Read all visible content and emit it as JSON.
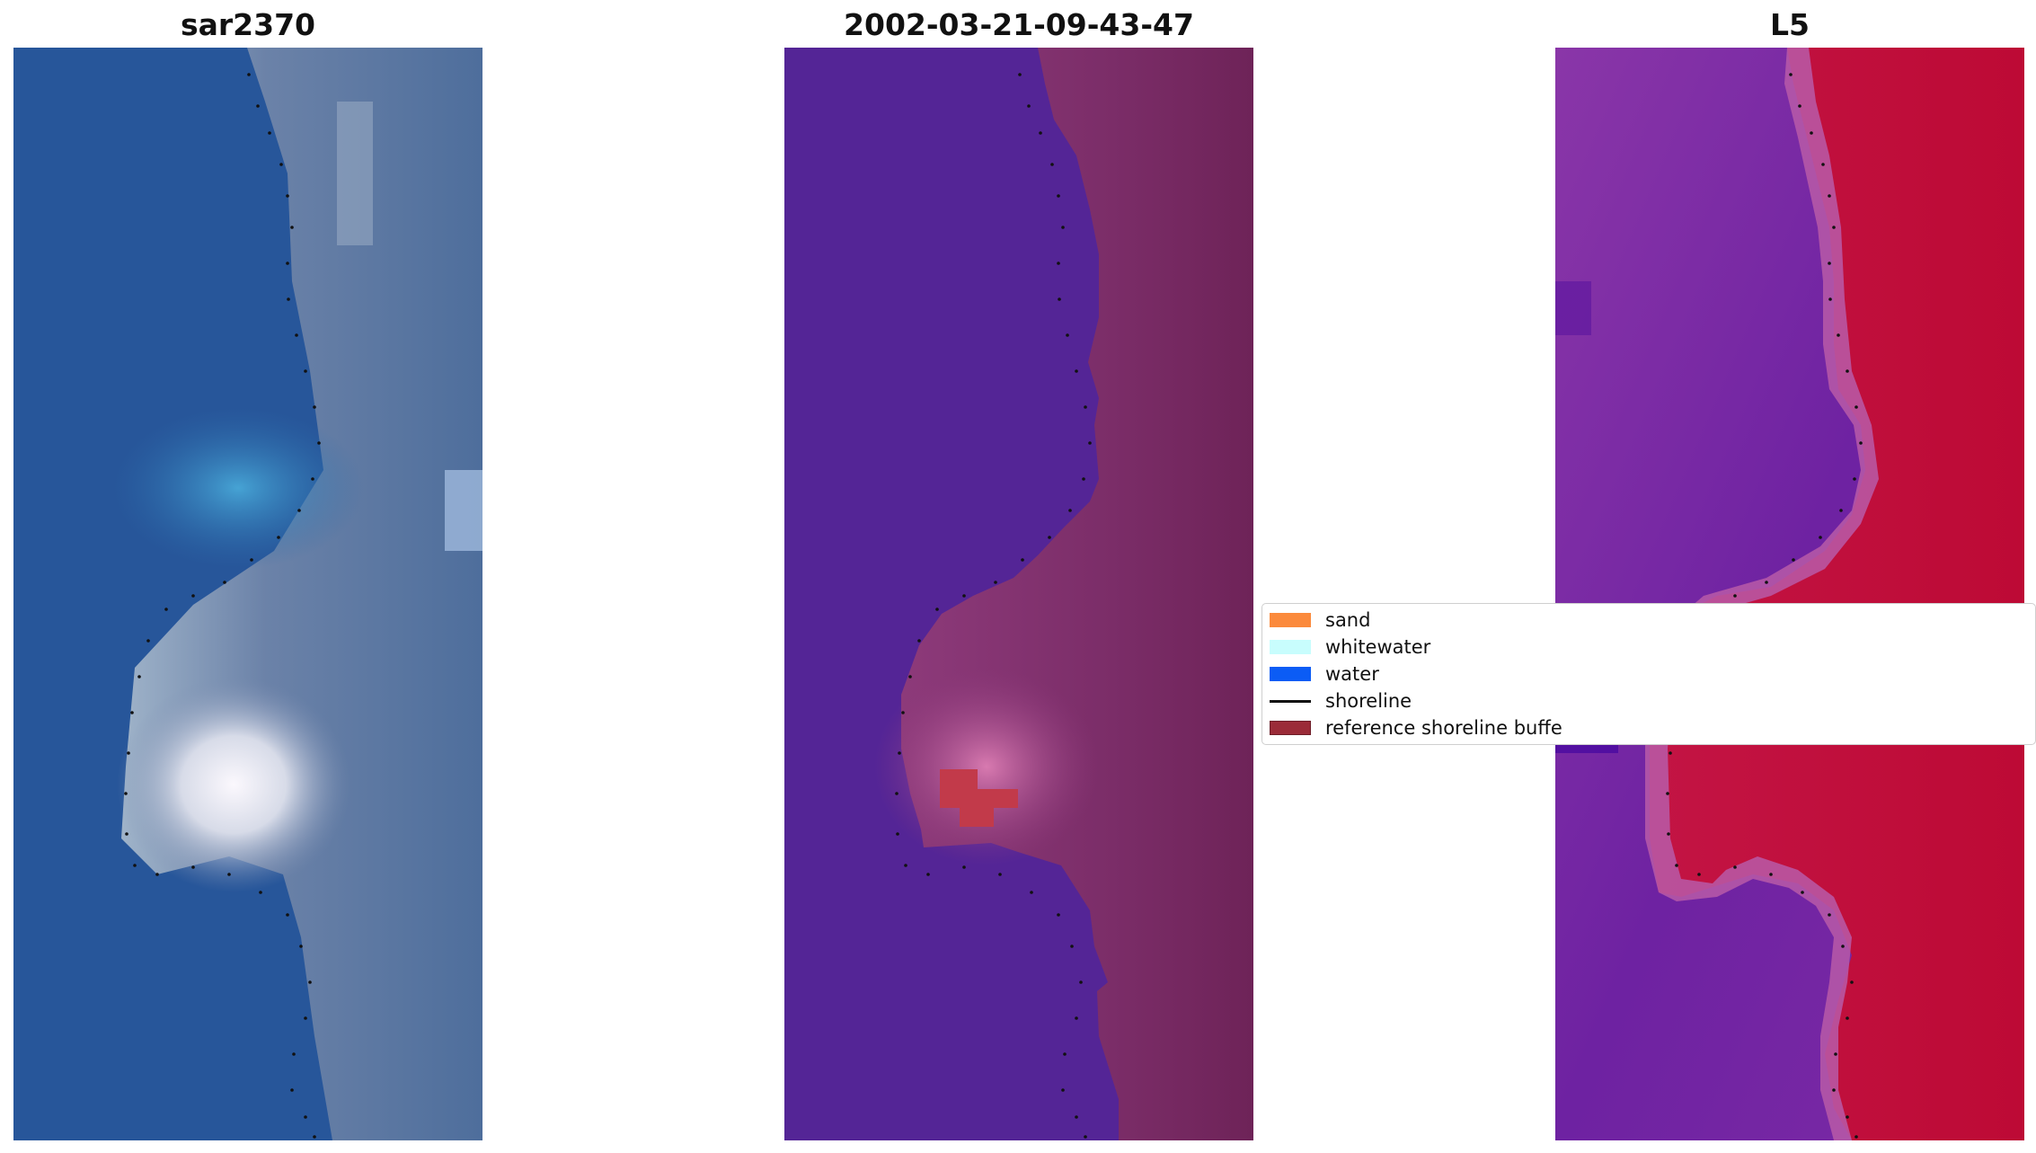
{
  "panels": [
    {
      "title": "sar2370",
      "name": "rgb-image-panel"
    },
    {
      "title": "2002-03-21-09-43-47",
      "name": "classified-image-panel"
    },
    {
      "title": "L5",
      "name": "mndwi-image-panel"
    }
  ],
  "legend": {
    "items": [
      {
        "label": "sand",
        "color": "#fb8a3c",
        "kind": "patch"
      },
      {
        "label": "whitewater",
        "color": "#c8fdfd",
        "kind": "patch"
      },
      {
        "label": "water",
        "color": "#0b5cf5",
        "kind": "patch"
      },
      {
        "label": "shoreline",
        "color": "#111111",
        "kind": "line"
      },
      {
        "label": "reference shoreline buffe",
        "color": "#9b2b38",
        "kind": "patch"
      }
    ]
  },
  "colors": {
    "rgb_water": "#2a5a9c",
    "rgb_light_water": "#3f91c6",
    "rgb_land": "#6f86aa",
    "rgb_whitewater": "#f3f1f7",
    "class_water": "#542596",
    "class_land": "#74265f",
    "class_buffer": "#c23a4a",
    "index_water": "#7a26a0",
    "index_land": "#c3103f",
    "index_mid": "#b85ba8",
    "shoreline_dots": "#111111"
  }
}
